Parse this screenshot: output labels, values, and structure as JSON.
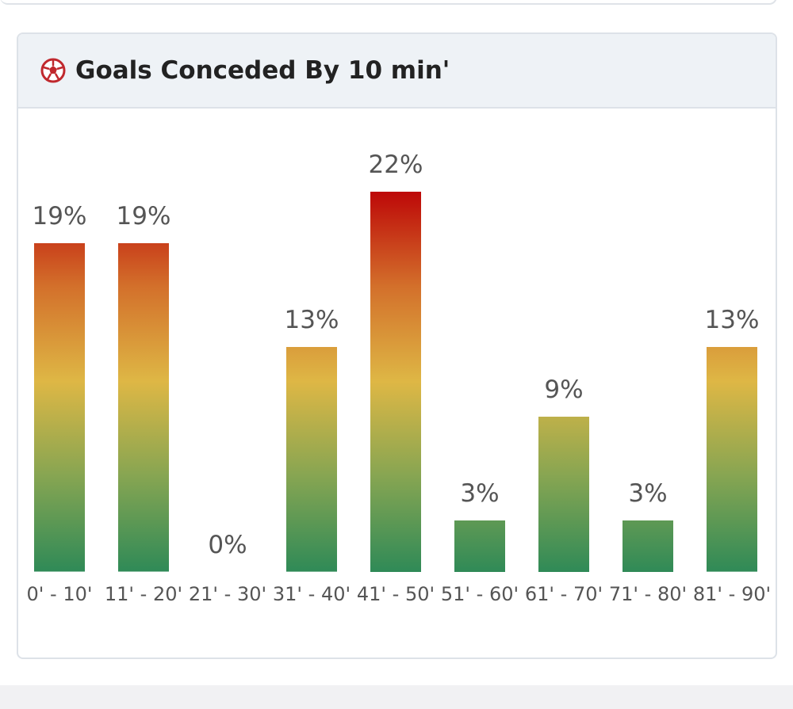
{
  "chart_data": {
    "type": "bar",
    "title": "Goals Conceded By 10 min'",
    "categories": [
      "0' - 10'",
      "11' - 20'",
      "21' - 30'",
      "31' - 40'",
      "41' - 50'",
      "51' - 60'",
      "61' - 70'",
      "71' - 80'",
      "81' - 90'"
    ],
    "values": [
      19,
      19,
      0,
      13,
      22,
      3,
      9,
      3,
      13
    ],
    "value_labels": [
      "19%",
      "19%",
      "0%",
      "13%",
      "22%",
      "3%",
      "9%",
      "3%",
      "13%"
    ],
    "gradient": [
      "#bd0808",
      "#d3702b",
      "#deb745",
      "#86a552",
      "#2f8a57"
    ]
  }
}
